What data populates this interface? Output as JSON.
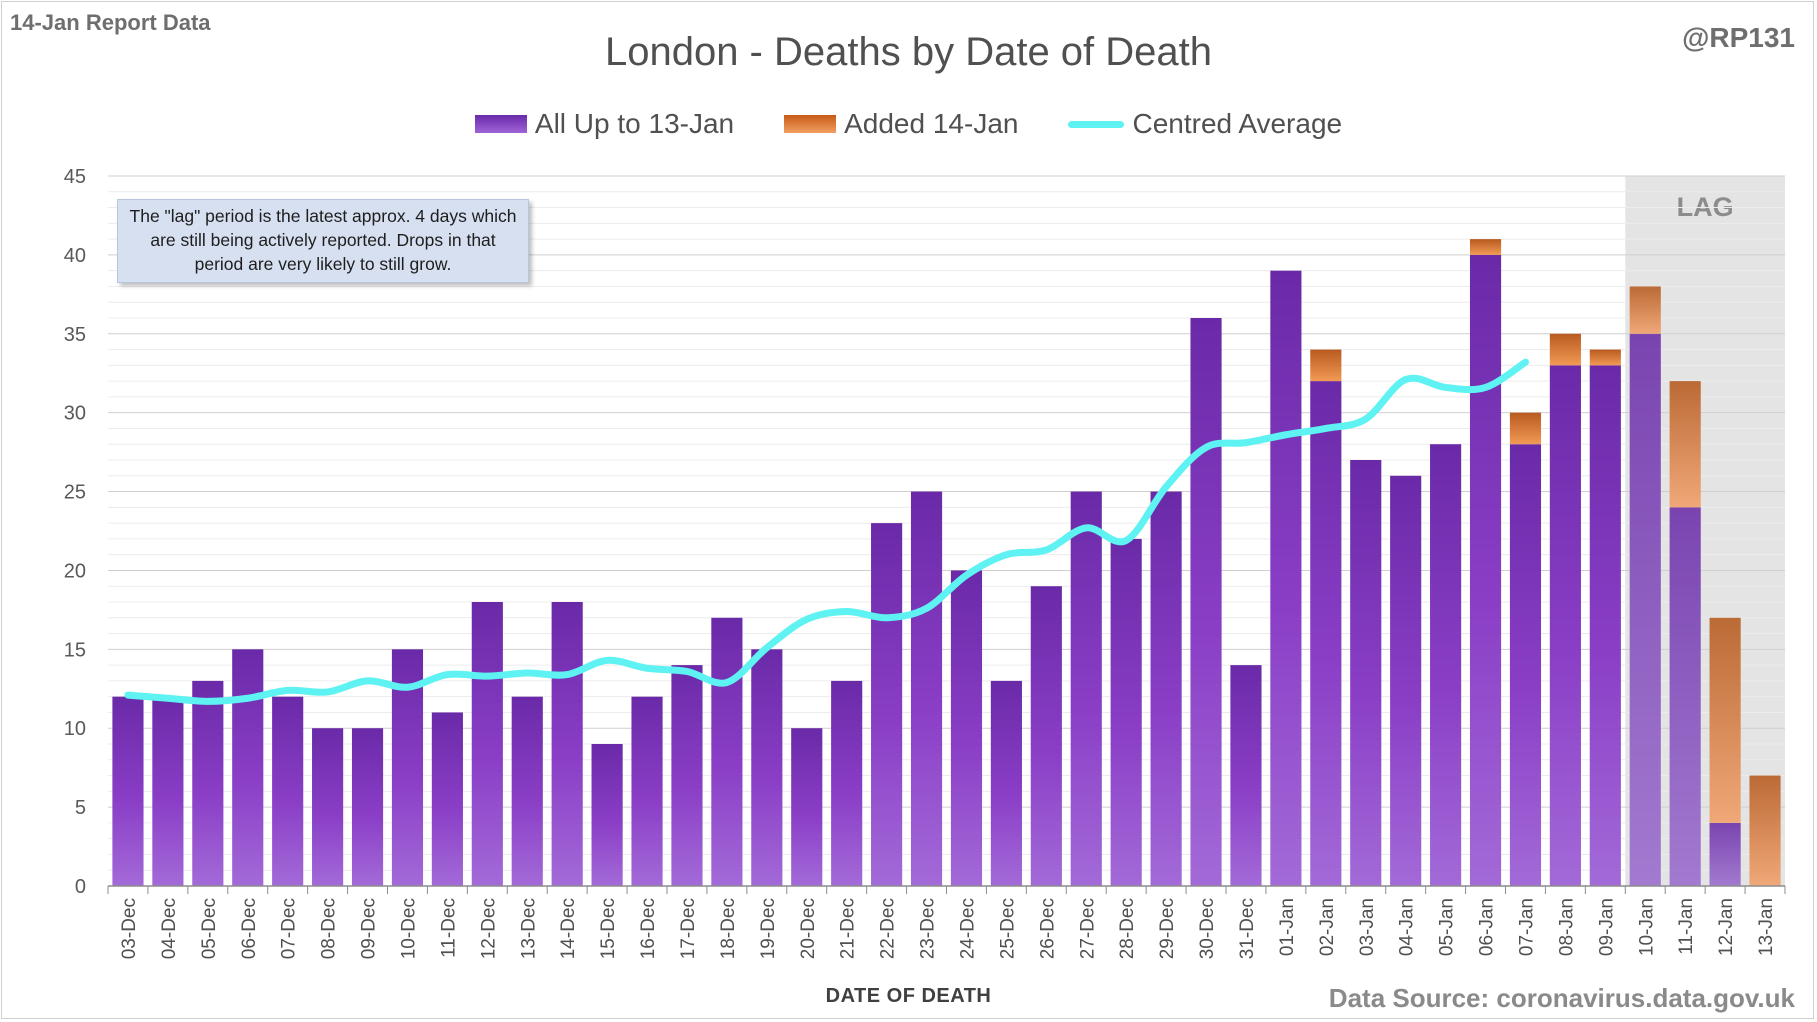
{
  "header": {
    "report_label": "14-Jan Report Data",
    "handle": "@RP131"
  },
  "footer": {
    "source": "Data Source: coronavirus.data.gov.uk"
  },
  "note": "The \"lag\" period is the latest approx. 4 days which are still being actively reported. Drops in that period are very likely to still grow.",
  "lag_label": "LAG",
  "colors": {
    "base": "#7a35b8",
    "added": "#e07830",
    "average": "#5ef2f2",
    "lag_shade": "#e4e4e4",
    "grid": "#d9d9d9"
  },
  "chart_data": {
    "type": "bar",
    "stacked": true,
    "title": "London - Deaths by Date of Death",
    "xlabel": "DATE OF DEATH",
    "ylabel": "",
    "ylim": [
      0,
      45
    ],
    "yticks": [
      0,
      5,
      10,
      15,
      20,
      25,
      30,
      35,
      40,
      45
    ],
    "grid": "horizontal",
    "legend": "top",
    "lag_categories": [
      "10-Jan",
      "11-Jan",
      "12-Jan",
      "13-Jan"
    ],
    "categories": [
      "03-Dec",
      "04-Dec",
      "05-Dec",
      "06-Dec",
      "07-Dec",
      "08-Dec",
      "09-Dec",
      "10-Dec",
      "11-Dec",
      "12-Dec",
      "13-Dec",
      "14-Dec",
      "15-Dec",
      "16-Dec",
      "17-Dec",
      "18-Dec",
      "19-Dec",
      "20-Dec",
      "21-Dec",
      "22-Dec",
      "23-Dec",
      "24-Dec",
      "25-Dec",
      "26-Dec",
      "27-Dec",
      "28-Dec",
      "29-Dec",
      "30-Dec",
      "31-Dec",
      "01-Jan",
      "02-Jan",
      "03-Jan",
      "04-Jan",
      "05-Jan",
      "06-Jan",
      "07-Jan",
      "08-Jan",
      "09-Jan",
      "10-Jan",
      "11-Jan",
      "12-Jan",
      "13-Jan"
    ],
    "series": [
      {
        "name": "All Up to 13-Jan",
        "type": "bar",
        "values": [
          12,
          12,
          13,
          15,
          12,
          10,
          10,
          15,
          11,
          18,
          12,
          18,
          9,
          12,
          14,
          17,
          15,
          10,
          13,
          23,
          25,
          20,
          13,
          19,
          25,
          22,
          25,
          36,
          14,
          39,
          32,
          27,
          26,
          28,
          40,
          28,
          33,
          33,
          35,
          24,
          4,
          0
        ]
      },
      {
        "name": "Added 14-Jan",
        "type": "bar",
        "values": [
          0,
          0,
          0,
          0,
          0,
          0,
          0,
          0,
          0,
          0,
          0,
          0,
          0,
          0,
          0,
          0,
          0,
          0,
          0,
          0,
          0,
          0,
          0,
          0,
          0,
          0,
          0,
          0,
          0,
          0,
          2,
          0,
          0,
          0,
          1,
          2,
          2,
          1,
          3,
          8,
          13,
          7
        ]
      },
      {
        "name": "Centred Average",
        "type": "line",
        "values": [
          12.1,
          11.9,
          11.7,
          11.9,
          12.4,
          12.3,
          13.0,
          12.6,
          13.4,
          13.3,
          13.5,
          13.4,
          14.3,
          13.8,
          13.6,
          12.9,
          15.1,
          16.9,
          17.4,
          17.0,
          17.6,
          19.7,
          21.0,
          21.3,
          22.7,
          21.9,
          25.3,
          27.8,
          28.1,
          28.6,
          29.0,
          29.6,
          32.1,
          31.6,
          31.6,
          33.2,
          null,
          null,
          null,
          null,
          null,
          null
        ]
      }
    ]
  }
}
